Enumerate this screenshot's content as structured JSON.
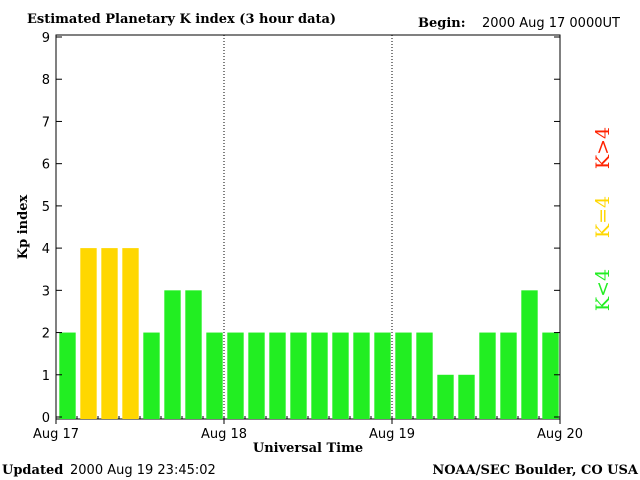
{
  "chart_data": {
    "type": "bar",
    "title": "Estimated Planetary K index (3 hour data)",
    "begin_label": "Begin:",
    "begin_value": "2000 Aug 17 0000UT",
    "ylabel": "Kp index",
    "xlabel": "Universal Time",
    "ylim": [
      0,
      9
    ],
    "yticks": [
      0,
      1,
      2,
      3,
      4,
      5,
      6,
      7,
      8,
      9
    ],
    "x_tick_labels": [
      "Aug 17",
      "Aug 18",
      "Aug 19",
      "Aug 20"
    ],
    "day_dividers": [
      "Aug 18",
      "Aug 19"
    ],
    "values": [
      2,
      4,
      4,
      4,
      2,
      3,
      3,
      2,
      2,
      2,
      2,
      2,
      2,
      2,
      2,
      2,
      2,
      2,
      1,
      1,
      2,
      2,
      3,
      2
    ],
    "legend": [
      {
        "label": "K<4",
        "color": "#22ee22"
      },
      {
        "label": "K=4",
        "color": "#ffd700"
      },
      {
        "label": "K>4",
        "color": "#ff2200"
      }
    ],
    "colors": {
      "low": "#22ee22",
      "mid": "#ffd700",
      "high": "#ff2200"
    }
  },
  "footer": {
    "updated_label": "Updated",
    "updated_value": "2000 Aug 19 23:45:02",
    "source": "NOAA/SEC Boulder, CO USA"
  }
}
